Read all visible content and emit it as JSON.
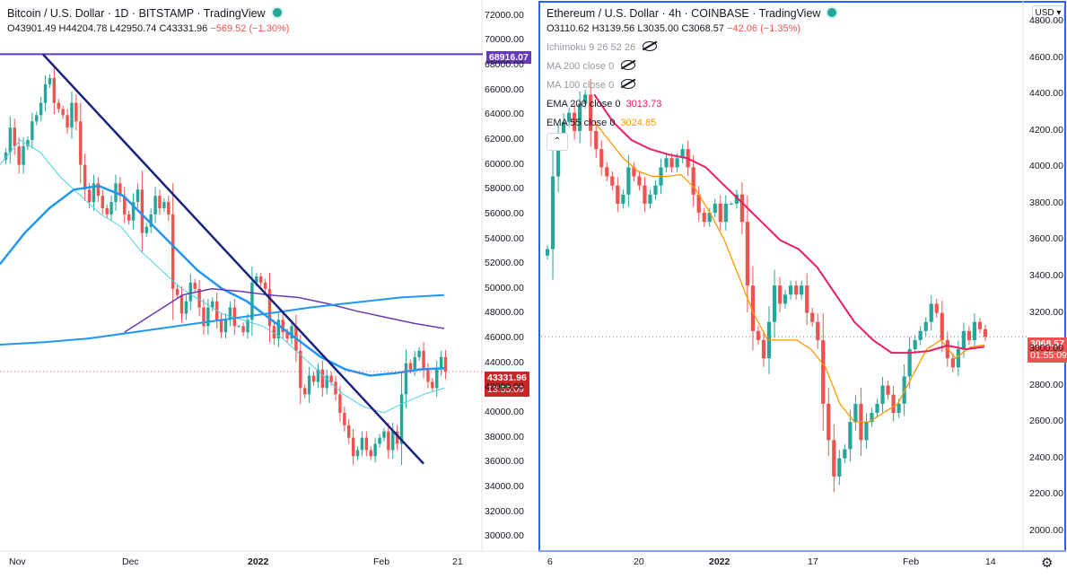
{
  "left": {
    "title": "Bitcoin / U.S. Dollar · 1D · BITSTAMP · TradingView",
    "ohlc": {
      "o": "O43901.49",
      "h": "H44204.78",
      "l": "L42950.74",
      "c": "C43331.96",
      "chg": "−569.52 (−1.30%)"
    },
    "price_tag": "43331.96",
    "countdown": "13:55:09",
    "line_tag": "68916.07",
    "y_ticks": [
      "72000.00",
      "70000.00",
      "68000.00",
      "66000.00",
      "64000.00",
      "62000.00",
      "60000.00",
      "58000.00",
      "56000.00",
      "54000.00",
      "52000.00",
      "50000.00",
      "48000.00",
      "46000.00",
      "44000.00",
      "42000.00",
      "40000.00",
      "38000.00",
      "36000.00",
      "34000.00",
      "32000.00",
      "30000.00"
    ],
    "x_ticks": [
      "Nov",
      "Dec",
      "2022",
      "Feb",
      "21"
    ],
    "colors": {
      "up": "#26a69a",
      "down": "#ef5350",
      "ma_blue": "#2196f3",
      "ma_cyan": "#4dd0e1",
      "ma_purple": "#673ab7",
      "trendline": "#1a237e",
      "hline": "#673ab7"
    }
  },
  "right": {
    "title": "Ethereum / U.S. Dollar · 4h · COINBASE · TradingView",
    "ohlc": {
      "o": "O3110.62",
      "h": "H3139.56",
      "l": "L3035.00",
      "c": "C3068.57",
      "chg": "−42.06 (−1.35%)"
    },
    "indicators": [
      {
        "label": "Ichimoku 9 26 52 26",
        "value": "",
        "hidden": true
      },
      {
        "label": "MA 200 close 0",
        "value": "",
        "hidden": true
      },
      {
        "label": "MA 100 close 0",
        "value": "",
        "hidden": true
      },
      {
        "label": "EMA 200 close 0",
        "value": "3013.73",
        "hidden": false
      },
      {
        "label": "EMA 55 close 0",
        "value": "3024.85",
        "hidden": false
      }
    ],
    "price_tag": "3068.57",
    "countdown": "01:55:09",
    "currency": "USD",
    "y_ticks": [
      "4800.00",
      "4600.00",
      "4400.00",
      "4200.00",
      "4000.00",
      "3800.00",
      "3600.00",
      "3400.00",
      "3200.00",
      "3000.00",
      "2800.00",
      "2600.00",
      "2400.00",
      "2200.00",
      "2000.00"
    ],
    "x_ticks": [
      "6",
      "20",
      "2022",
      "17",
      "Feb",
      "14"
    ],
    "colors": {
      "up": "#26a69a",
      "down": "#ef5350",
      "ema200": "#e91e63",
      "ema55": "#ff9800",
      "border": "#2962ff"
    }
  },
  "chart_data": [
    {
      "type": "candlestick",
      "title": "Bitcoin / U.S. Dollar · 1D · BITSTAMP",
      "ylim": [
        29000,
        73000
      ],
      "x_labels": [
        "Nov",
        "Dec",
        "2022",
        "Feb",
        "21"
      ],
      "current_price": 43331.96,
      "horizontal_line": 68916.07,
      "trendline": {
        "from": [
          "early Nov",
          68900
        ],
        "to": [
          "mid Feb",
          35900
        ]
      },
      "series": [
        {
          "name": "close",
          "values": [
            61000,
            63000,
            61500,
            60000,
            61500,
            62000,
            63500,
            64000,
            65000,
            66500,
            67000,
            65000,
            64500,
            64000,
            63000,
            65000,
            63500,
            60000,
            58000,
            57000,
            58500,
            57500,
            56500,
            56000,
            57000,
            58500,
            57500,
            56000,
            55500,
            57000,
            58000,
            54500,
            55000,
            56000,
            57500,
            56500,
            57000,
            56000,
            50000,
            49500,
            48000,
            49000,
            50500,
            50000,
            48500,
            47000,
            48500,
            49000,
            47500,
            46500,
            47500,
            48500,
            47000,
            47000,
            46500,
            47500,
            50500,
            51000,
            50500,
            50000,
            47000,
            46000,
            47500,
            46500,
            46000,
            47000,
            45000,
            42000,
            41500,
            43000,
            42500,
            43500,
            42000,
            43000,
            42500,
            41500,
            40000,
            39000,
            38000,
            36500,
            37000,
            38000,
            37000,
            36500,
            37500,
            38000,
            38500,
            37000,
            38500,
            37500,
            41500,
            44000,
            43500,
            44500,
            45000,
            43500,
            42500,
            42000,
            43500,
            44500,
            43300
          ]
        },
        {
          "name": "MA (cyan)",
          "values": [
            60000,
            62000,
            61000,
            59000,
            57500,
            56000,
            55000,
            53000,
            51500,
            50000,
            49000,
            48000,
            47500,
            47000,
            46000,
            44500,
            43000,
            41500,
            40500,
            40000,
            40800,
            41500,
            42000
          ]
        },
        {
          "name": "MA (blue)",
          "values": [
            52000,
            54500,
            56500,
            58000,
            58300,
            57500,
            55500,
            53500,
            51500,
            50000,
            49000,
            47500,
            46000,
            44500,
            43500,
            43000,
            43200,
            43500,
            43600
          ]
        },
        {
          "name": "MA (purple)",
          "values": [
            46500,
            48000,
            49500,
            50000,
            49800,
            49500,
            49300,
            48800,
            48200,
            47700,
            47200,
            46800
          ]
        },
        {
          "name": "MA (long blue)",
          "values": [
            45500,
            45700,
            46000,
            46500,
            47000,
            47500,
            48000,
            48500,
            48900,
            49300,
            49500
          ]
        }
      ]
    },
    {
      "type": "candlestick",
      "title": "Ethereum / U.S. Dollar · 4h · COINBASE",
      "ylim": [
        1900,
        4900
      ],
      "x_labels": [
        "6",
        "20",
        "2022",
        "17",
        "Feb",
        "14"
      ],
      "current_price": 3068.57,
      "series": [
        {
          "name": "close",
          "values": [
            3550,
            3950,
            4150,
            4250,
            4300,
            4200,
            4350,
            4400,
            4200,
            4100,
            4000,
            3950,
            3900,
            3800,
            3850,
            4000,
            3950,
            3900,
            3800,
            3850,
            3900,
            4000,
            4050,
            4000,
            4050,
            4100,
            4000,
            3850,
            3750,
            3700,
            3750,
            3800,
            3700,
            3800,
            3800,
            3850,
            3700,
            3350,
            3100,
            3050,
            2950,
            3150,
            3350,
            3250,
            3300,
            3350,
            3300,
            3350,
            3200,
            3150,
            3050,
            2700,
            2500,
            2300,
            2400,
            2450,
            2600,
            2700,
            2500,
            2600,
            2650,
            2700,
            2800,
            2750,
            2650,
            2700,
            2850,
            3000,
            3050,
            3100,
            3150,
            3250,
            3200,
            3050,
            2950,
            2900,
            3000,
            3100,
            3050,
            3150,
            3110,
            3068
          ]
        },
        {
          "name": "EMA 55",
          "values": [
            4250,
            4150,
            4050,
            3980,
            3950,
            3950,
            3960,
            3880,
            3750,
            3600,
            3400,
            3200,
            3050,
            3050,
            3050,
            3000,
            2900,
            2700,
            2600,
            2600,
            2650,
            2700,
            2850,
            3000,
            3050,
            2950,
            3010,
            3024
          ]
        },
        {
          "name": "EMA 200",
          "values": [
            4400,
            4250,
            4150,
            4100,
            4070,
            4050,
            4000,
            3900,
            3800,
            3700,
            3600,
            3550,
            3450,
            3300,
            3150,
            3050,
            2980,
            2980,
            2990,
            3020,
            3000,
            3013
          ]
        }
      ]
    }
  ]
}
